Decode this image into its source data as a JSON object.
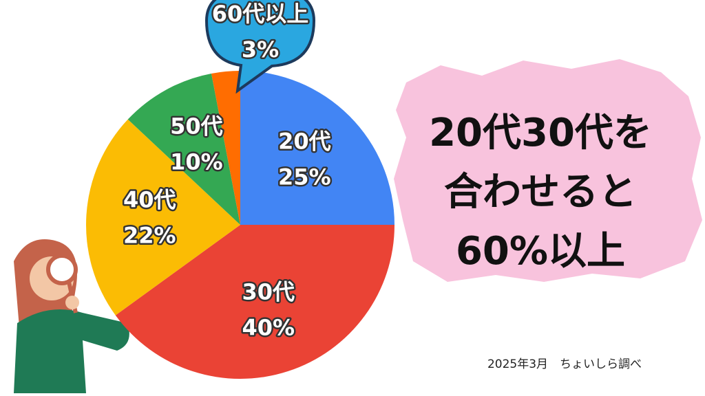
{
  "chart_data": {
    "type": "pie",
    "categories": [
      "20代",
      "30代",
      "40代",
      "50代",
      "60代以上"
    ],
    "values": [
      25,
      40,
      22,
      10,
      3
    ],
    "value_labels": [
      "25%",
      "40%",
      "22%",
      "10%",
      "3%"
    ],
    "colors": [
      "#4285f4",
      "#ea4335",
      "#fbbc04",
      "#34a853",
      "#ff6d01"
    ],
    "annotation": [
      "20代30代を",
      "合わせると",
      "60%以上"
    ],
    "source": "2025年3月　ちょいしら調べ"
  }
}
